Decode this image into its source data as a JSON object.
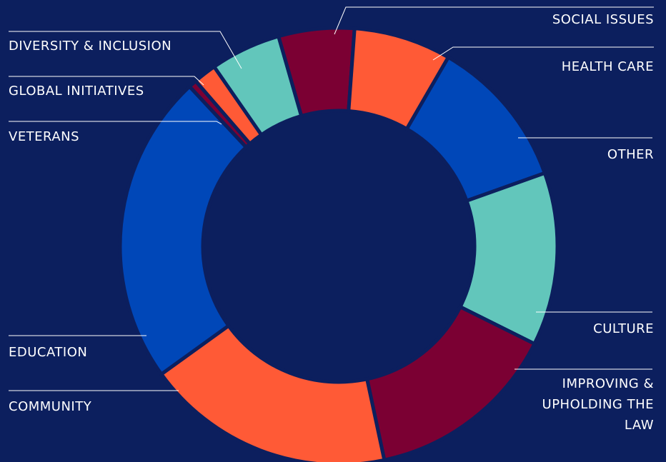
{
  "chart_data": {
    "type": "donut",
    "categories": [
      "SOCIAL ISSUES",
      "HEALTH CARE",
      "OTHER",
      "CULTURE",
      "IMPROVING & UPHOLDING THE LAW",
      "COMMUNITY",
      "EDUCATION",
      "VETERANS",
      "GLOBAL INITIATIVES",
      "DIVERSITY & INCLUSION"
    ],
    "values": [
      5.6,
      7.2,
      11.2,
      12.8,
      14.3,
      18.4,
      23,
      0.6,
      1.7,
      5.2
    ],
    "colors": [
      "#7b0033",
      "#ff5a36",
      "#0047b8",
      "#62c6bb",
      "#7b0033",
      "#ff5a36",
      "#0047b8",
      "#7b0033",
      "#ff5a36",
      "#62c6bb"
    ]
  }
}
